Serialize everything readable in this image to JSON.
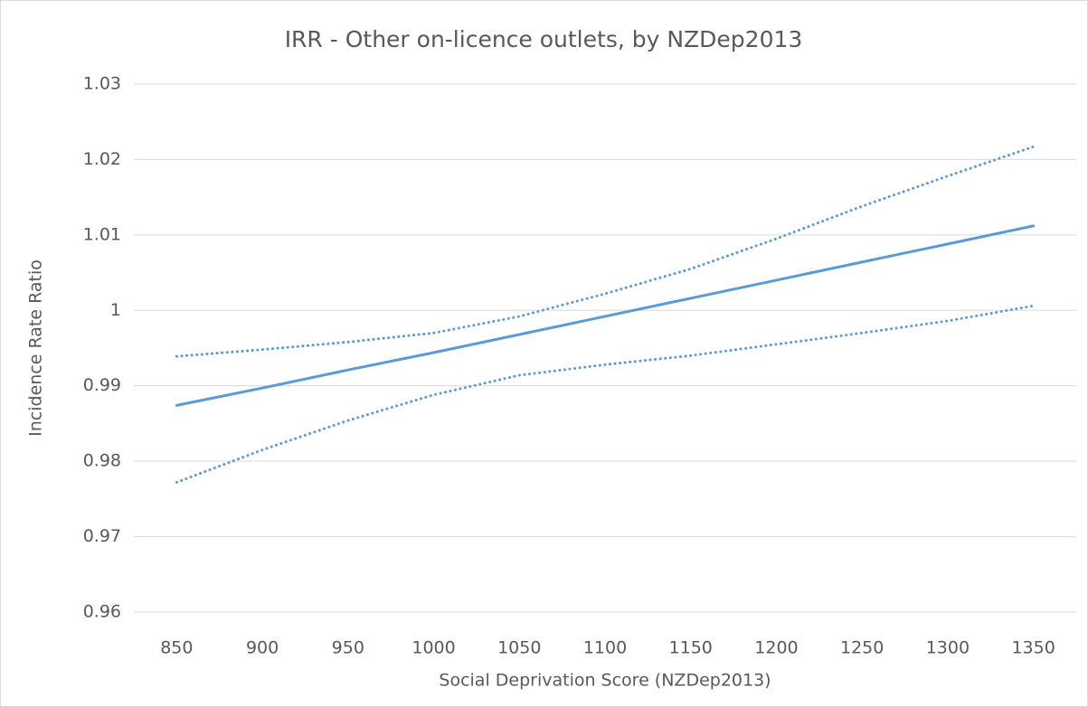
{
  "chart_data": {
    "type": "line",
    "title": "IRR - Other on-licence outlets, by NZDep2013",
    "x_label": "Social Deprivation Score (NZDep2013)",
    "y_label": "Incidence Rate Ratio",
    "x": [
      850,
      900,
      950,
      1000,
      1050,
      1100,
      1150,
      1200,
      1250,
      1300,
      1350
    ],
    "series": [
      {
        "color": "#5b9bd5",
        "style": "solid",
        "values": [
          0.9874,
          0.9897,
          0.9921,
          0.9944,
          0.9968,
          0.9992,
          1.0016,
          1.004,
          1.0064,
          1.0088,
          1.0112
        ]
      },
      {
        "color": "#5b9bd5",
        "style": "dotted",
        "values": [
          0.9939,
          0.9948,
          0.9958,
          0.997,
          0.9992,
          1.0022,
          1.0055,
          1.0095,
          1.0138,
          1.0178,
          1.0217
        ]
      },
      {
        "color": "#5b9bd5",
        "style": "dotted",
        "values": [
          0.9772,
          0.9815,
          0.9854,
          0.9888,
          0.9914,
          0.9928,
          0.994,
          0.9955,
          0.997,
          0.9986,
          1.0006
        ]
      }
    ],
    "xlim": [
      825,
      1375
    ],
    "xticks": [
      850,
      900,
      950,
      1000,
      1050,
      1100,
      1150,
      1200,
      1250,
      1300,
      1350
    ],
    "ylim": [
      0.96,
      1.03
    ],
    "yticks": [
      0.96,
      0.97,
      0.98,
      0.99,
      1,
      1.01,
      1.02,
      1.03
    ],
    "grid": true
  }
}
